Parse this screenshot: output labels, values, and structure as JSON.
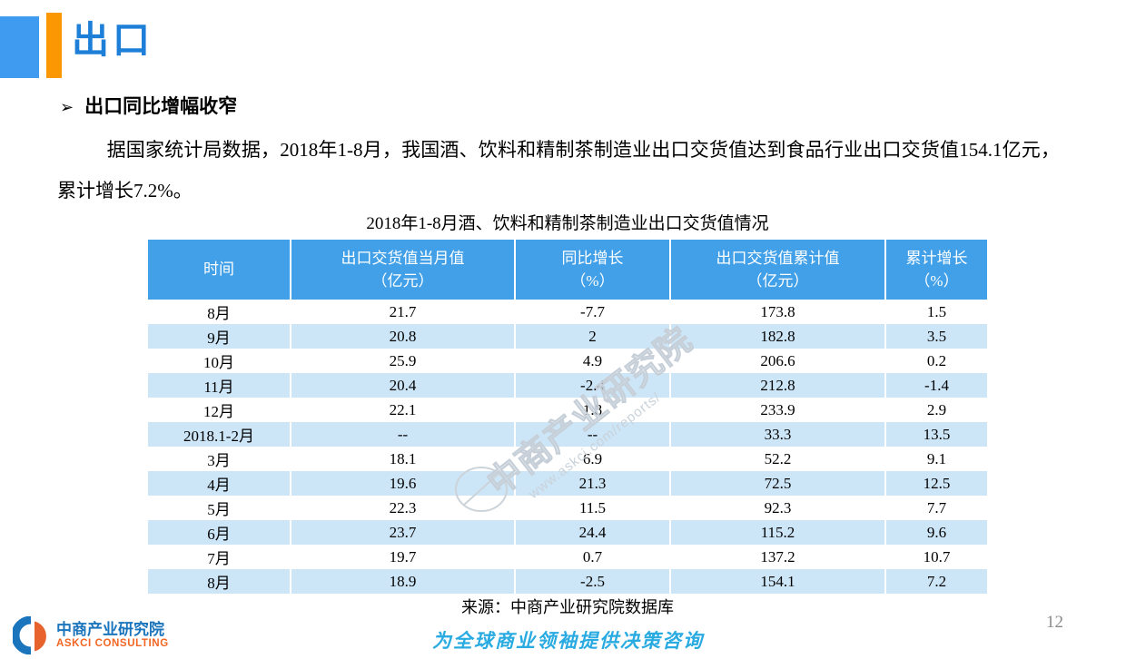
{
  "page": {
    "title": "出口",
    "page_number": "12"
  },
  "section": {
    "bullet": "➢",
    "heading": "出口同比增幅收窄",
    "paragraph": "据国家统计局数据，2018年1-8月，我国酒、饮料和精制茶制造业出口交货值达到食品行业出口交货值154.1亿元，累计增长7.2%。"
  },
  "table": {
    "title": "2018年1-8月酒、饮料和精制茶制造业出口交货值情况",
    "columns": [
      {
        "label": "时间",
        "sub": ""
      },
      {
        "label": "出口交货值当月值",
        "sub": "（亿元）"
      },
      {
        "label": "同比增长",
        "sub": "（%）"
      },
      {
        "label": "出口交货值累计值",
        "sub": "（亿元）"
      },
      {
        "label": "累计增长",
        "sub": "（%）"
      }
    ],
    "rows": [
      [
        "8月",
        "21.7",
        "-7.7",
        "173.8",
        "1.5"
      ],
      [
        "9月",
        "20.8",
        "2",
        "182.8",
        "3.5"
      ],
      [
        "10月",
        "25.9",
        "4.9",
        "206.6",
        "0.2"
      ],
      [
        "11月",
        "20.4",
        "-2.4",
        "212.8",
        "-1.4"
      ],
      [
        "12月",
        "22.1",
        "1.8",
        "233.9",
        "2.9"
      ],
      [
        "2018.1-2月",
        "--",
        "--",
        "33.3",
        "13.5"
      ],
      [
        "3月",
        "18.1",
        "6.9",
        "52.2",
        "9.1"
      ],
      [
        "4月",
        "19.6",
        "21.3",
        "72.5",
        "12.5"
      ],
      [
        "5月",
        "22.3",
        "11.5",
        "92.3",
        "7.7"
      ],
      [
        "6月",
        "23.7",
        "24.4",
        "115.2",
        "9.6"
      ],
      [
        "7月",
        "19.7",
        "0.7",
        "137.2",
        "10.7"
      ],
      [
        "8月",
        "18.9",
        "-2.5",
        "154.1",
        "7.2"
      ]
    ],
    "source": "来源：中商产业研究院数据库"
  },
  "watermark": {
    "line1": "中商产业研究院",
    "line2": "www.askci.com/reports/"
  },
  "footer": {
    "logo_title": "中商产业研究院",
    "logo_subtitle": "ASKCI CONSULTING",
    "tagline": "为全球商业领袖提供决策咨询"
  },
  "colors": {
    "title_blue": "#1E7FD8",
    "accent_square_blue": "#3F9BF0",
    "accent_bar_orange": "#FB9703",
    "table_header_blue": "#42A0E8",
    "table_stripe_blue": "#CDE6F7",
    "tagline_cyan": "#29ABE2",
    "logo_blue": "#1B75BC",
    "logo_orange": "#F26522"
  },
  "chart_data": {
    "type": "table",
    "title": "2018年1-8月酒、饮料和精制茶制造业出口交货值情况",
    "categories": [
      "8月",
      "9月",
      "10月",
      "11月",
      "12月",
      "2018.1-2月",
      "3月",
      "4月",
      "5月",
      "6月",
      "7月",
      "8月"
    ],
    "series": [
      {
        "name": "出口交货值当月值（亿元）",
        "values": [
          21.7,
          20.8,
          25.9,
          20.4,
          22.1,
          null,
          18.1,
          19.6,
          22.3,
          23.7,
          19.7,
          18.9
        ]
      },
      {
        "name": "同比增长（%）",
        "values": [
          -7.7,
          2,
          4.9,
          -2.4,
          1.8,
          null,
          6.9,
          21.3,
          11.5,
          24.4,
          0.7,
          -2.5
        ]
      },
      {
        "name": "出口交货值累计值（亿元）",
        "values": [
          173.8,
          182.8,
          206.6,
          212.8,
          233.9,
          33.3,
          52.2,
          72.5,
          92.3,
          115.2,
          137.2,
          154.1
        ]
      },
      {
        "name": "累计增长（%）",
        "values": [
          1.5,
          3.5,
          0.2,
          -1.4,
          2.9,
          13.5,
          9.1,
          12.5,
          7.7,
          9.6,
          10.7,
          7.2
        ]
      }
    ]
  }
}
